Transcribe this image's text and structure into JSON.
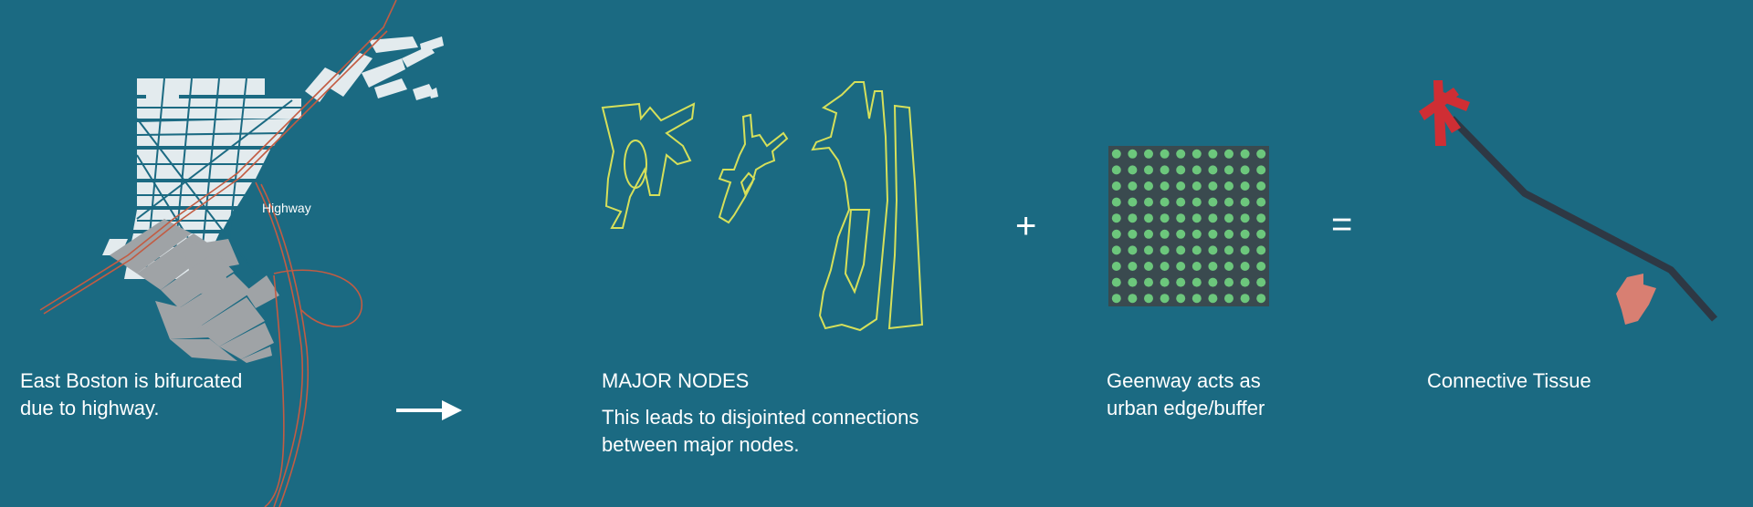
{
  "colors": {
    "background": "#1b6a82",
    "blocks_north": "#e3ebee",
    "blocks_south": "#9fa3a6",
    "highway": "#c25c43",
    "nodes_outline": "#d6e05a",
    "greenway_dot": "#6cc77c",
    "greenway_bg": "#3a4a4f",
    "tissue_red": "#cf2e34",
    "tissue_dark": "#2e3844",
    "tissue_pink": "#d87f72"
  },
  "panel1": {
    "map_label": "Highway",
    "caption": [
      "East Boston is bifurcated",
      "due to highway."
    ]
  },
  "arrow_icon": "right-arrow-icon",
  "panel2": {
    "title": "MAJOR NODES",
    "caption": [
      "This leads to disjointed connections",
      "between major nodes."
    ]
  },
  "plus_symbol": "+",
  "panel3": {
    "caption": [
      "Geenway acts as",
      "urban edge/buffer"
    ]
  },
  "equals_symbol": "=",
  "panel4": {
    "caption": [
      "Connective Tissue"
    ]
  }
}
